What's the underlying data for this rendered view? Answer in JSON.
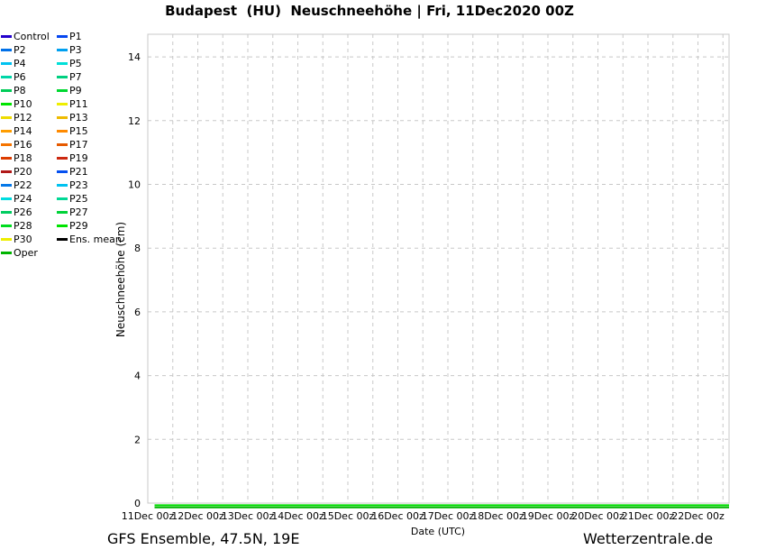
{
  "footer": {
    "left_caption": "GFS Ensemble, 47.5N, 19E",
    "right_caption": "Wetterzentrale.de"
  },
  "chart_data": {
    "type": "line",
    "title": "Budapest  (HU)  Neuschneehöhe | Fri, 11Dec2020 00Z",
    "xlabel": "Date (UTC)",
    "ylabel": "Neuschneehöhe (cm)",
    "ylim": [
      0,
      14.7
    ],
    "yticks": [
      0,
      2,
      4,
      6,
      8,
      10,
      12,
      14
    ],
    "grid": "dashed",
    "grid_color": "#c8c8c8",
    "axis_text_color": "#000000",
    "legend_position": "top-left",
    "x_minor_ticks_per_day": 2,
    "categories": [
      "11Dec 00z",
      "12Dec 00z",
      "13Dec 00z",
      "14Dec 00z",
      "15Dec 00z",
      "16Dec 00z",
      "17Dec 00z",
      "18Dec 00z",
      "19Dec 00z",
      "20Dec 00z",
      "21Dec 00z",
      "22Dec 00z"
    ],
    "flat_line_colors": [
      "#00DC00",
      "#00B400"
    ],
    "series": [
      {
        "name": "Control",
        "color": "#2200CC",
        "values": [
          0,
          0,
          0,
          0,
          0,
          0,
          0,
          0,
          0,
          0,
          0,
          0
        ]
      },
      {
        "name": "P1",
        "color": "#0546F0",
        "values": [
          0,
          0,
          0,
          0,
          0,
          0,
          0,
          0,
          0,
          0,
          0,
          0
        ]
      },
      {
        "name": "P2",
        "color": "#0070E8",
        "values": [
          0,
          0,
          0,
          0,
          0,
          0,
          0,
          0,
          0,
          0,
          0,
          0
        ]
      },
      {
        "name": "P3",
        "color": "#00A0F0",
        "values": [
          0,
          0,
          0,
          0,
          0,
          0,
          0,
          0,
          0,
          0,
          0,
          0
        ]
      },
      {
        "name": "P4",
        "color": "#00C2F0",
        "values": [
          0,
          0,
          0,
          0,
          0,
          0,
          0,
          0,
          0,
          0,
          0,
          0
        ]
      },
      {
        "name": "P5",
        "color": "#00DFD8",
        "values": [
          0,
          0,
          0,
          0,
          0,
          0,
          0,
          0,
          0,
          0,
          0,
          0
        ]
      },
      {
        "name": "P6",
        "color": "#00D6A8",
        "values": [
          0,
          0,
          0,
          0,
          0,
          0,
          0,
          0,
          0,
          0,
          0,
          0
        ]
      },
      {
        "name": "P7",
        "color": "#00D080",
        "values": [
          0,
          0,
          0,
          0,
          0,
          0,
          0,
          0,
          0,
          0,
          0,
          0
        ]
      },
      {
        "name": "P8",
        "color": "#00CC58",
        "values": [
          0,
          0,
          0,
          0,
          0,
          0,
          0,
          0,
          0,
          0,
          0,
          0
        ]
      },
      {
        "name": "P9",
        "color": "#00D830",
        "values": [
          0,
          0,
          0,
          0,
          0,
          0,
          0,
          0,
          0,
          0,
          0,
          0
        ]
      },
      {
        "name": "P10",
        "color": "#00E400",
        "values": [
          0,
          0,
          0,
          0,
          0,
          0,
          0,
          0,
          0,
          0,
          0,
          0
        ]
      },
      {
        "name": "P11",
        "color": "#EEEE00",
        "values": [
          0,
          0,
          0,
          0,
          0,
          0,
          0,
          0,
          0,
          0,
          0,
          0
        ]
      },
      {
        "name": "P12",
        "color": "#EEDC00",
        "values": [
          0,
          0,
          0,
          0,
          0,
          0,
          0,
          0,
          0,
          0,
          0,
          0
        ]
      },
      {
        "name": "P13",
        "color": "#EEBB00",
        "values": [
          0,
          0,
          0,
          0,
          0,
          0,
          0,
          0,
          0,
          0,
          0,
          0
        ]
      },
      {
        "name": "P14",
        "color": "#FF9D00",
        "values": [
          0,
          0,
          0,
          0,
          0,
          0,
          0,
          0,
          0,
          0,
          0,
          0
        ]
      },
      {
        "name": "P15",
        "color": "#FF8A00",
        "values": [
          0,
          0,
          0,
          0,
          0,
          0,
          0,
          0,
          0,
          0,
          0,
          0
        ]
      },
      {
        "name": "P16",
        "color": "#F57400",
        "values": [
          0,
          0,
          0,
          0,
          0,
          0,
          0,
          0,
          0,
          0,
          0,
          0
        ]
      },
      {
        "name": "P17",
        "color": "#E65A00",
        "values": [
          0,
          0,
          0,
          0,
          0,
          0,
          0,
          0,
          0,
          0,
          0,
          0
        ]
      },
      {
        "name": "P18",
        "color": "#DC3C00",
        "values": [
          0,
          0,
          0,
          0,
          0,
          0,
          0,
          0,
          0,
          0,
          0,
          0
        ]
      },
      {
        "name": "P19",
        "color": "#CC2810",
        "values": [
          0,
          0,
          0,
          0,
          0,
          0,
          0,
          0,
          0,
          0,
          0,
          0
        ]
      },
      {
        "name": "P20",
        "color": "#B01818",
        "values": [
          0,
          0,
          0,
          0,
          0,
          0,
          0,
          0,
          0,
          0,
          0,
          0
        ]
      },
      {
        "name": "P21",
        "color": "#0550F0",
        "values": [
          0,
          0,
          0,
          0,
          0,
          0,
          0,
          0,
          0,
          0,
          0,
          0
        ]
      },
      {
        "name": "P22",
        "color": "#0578E8",
        "values": [
          0,
          0,
          0,
          0,
          0,
          0,
          0,
          0,
          0,
          0,
          0,
          0
        ]
      },
      {
        "name": "P23",
        "color": "#00C2F0",
        "values": [
          0,
          0,
          0,
          0,
          0,
          0,
          0,
          0,
          0,
          0,
          0,
          0
        ]
      },
      {
        "name": "P24",
        "color": "#00DCE0",
        "values": [
          0,
          0,
          0,
          0,
          0,
          0,
          0,
          0,
          0,
          0,
          0,
          0
        ]
      },
      {
        "name": "P25",
        "color": "#00D895",
        "values": [
          0,
          0,
          0,
          0,
          0,
          0,
          0,
          0,
          0,
          0,
          0,
          0
        ]
      },
      {
        "name": "P26",
        "color": "#00CC60",
        "values": [
          0,
          0,
          0,
          0,
          0,
          0,
          0,
          0,
          0,
          0,
          0,
          0
        ]
      },
      {
        "name": "P27",
        "color": "#00D238",
        "values": [
          0,
          0,
          0,
          0,
          0,
          0,
          0,
          0,
          0,
          0,
          0,
          0
        ]
      },
      {
        "name": "P28",
        "color": "#00DC20",
        "values": [
          0,
          0,
          0,
          0,
          0,
          0,
          0,
          0,
          0,
          0,
          0,
          0
        ]
      },
      {
        "name": "P29",
        "color": "#00E400",
        "values": [
          0,
          0,
          0,
          0,
          0,
          0,
          0,
          0,
          0,
          0,
          0,
          0
        ]
      },
      {
        "name": "P30",
        "color": "#EEEE00",
        "values": [
          0,
          0,
          0,
          0,
          0,
          0,
          0,
          0,
          0,
          0,
          0,
          0
        ]
      },
      {
        "name": "Ens. mean",
        "color": "#000000",
        "values": [
          0,
          0,
          0,
          0,
          0,
          0,
          0,
          0,
          0,
          0,
          0,
          0
        ]
      },
      {
        "name": "Oper",
        "color": "#00B400",
        "values": [
          0,
          0,
          0,
          0,
          0,
          0,
          0,
          0,
          0,
          0,
          0,
          0
        ]
      }
    ]
  }
}
